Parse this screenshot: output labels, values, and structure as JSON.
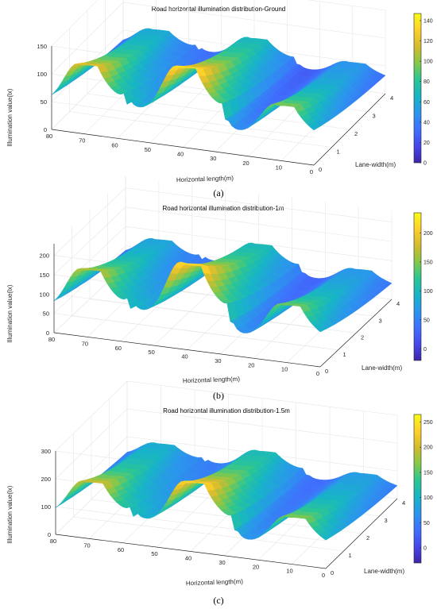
{
  "colormap": [
    "#3e26a8",
    "#4746eb",
    "#3f6ffd",
    "#2b95ed",
    "#17b4c7",
    "#2bc694",
    "#84c84a",
    "#d4bb2e",
    "#fdcf2c",
    "#f9fb15"
  ],
  "axis_color": "#262626",
  "grid_color": "#e6e6e6",
  "chart_data": [
    {
      "type": "surface",
      "panel_label": "(a)",
      "title": "Road horizontal illumination distribution-Ground",
      "xlabel": "Horizontal length(m)",
      "ylabel": "Lane-width(m)",
      "zlabel": "Illumination value(lx)",
      "x_ticks": [
        "80",
        "70",
        "60",
        "50",
        "40",
        "30",
        "20",
        "10",
        "0"
      ],
      "y_ticks": [
        "0",
        "1",
        "2",
        "3",
        "4"
      ],
      "z_ticks": [
        "0",
        "50",
        "100",
        "150"
      ],
      "colorbar_ticks": [
        "0",
        "20",
        "40",
        "60",
        "80",
        "100",
        "120",
        "140"
      ],
      "xlim": [
        0,
        80
      ],
      "ylim": [
        0,
        4
      ],
      "zlim": [
        0,
        150
      ],
      "cmin": 0,
      "cmax": 147,
      "lamp_positions": [
        72,
        42,
        12
      ],
      "peak_values": [
        125,
        145,
        100
      ],
      "base_value": 10,
      "grid": true
    },
    {
      "type": "surface",
      "panel_label": "(b)",
      "title": "Road horizontal illumination distribution-1m",
      "xlabel": "Horizontal length(m)",
      "ylabel": "Lane-width(m)",
      "zlabel": "Illumination value(lx)",
      "x_ticks": [
        "80",
        "70",
        "60",
        "50",
        "40",
        "30",
        "20",
        "10",
        "0"
      ],
      "y_ticks": [
        "0",
        "1",
        "2",
        "3",
        "4"
      ],
      "z_ticks": [
        "0",
        "50",
        "100",
        "150",
        "200"
      ],
      "colorbar_ticks": [
        "0",
        "50",
        "100",
        "150",
        "200"
      ],
      "xlim": [
        0,
        80
      ],
      "ylim": [
        0,
        4
      ],
      "zlim": [
        0,
        230
      ],
      "cmin": -20,
      "cmax": 235,
      "lamp_positions": [
        72,
        42,
        12
      ],
      "peak_values": [
        175,
        225,
        150
      ],
      "base_value": 5,
      "grid": true
    },
    {
      "type": "surface",
      "panel_label": "(c)",
      "title": "Road horizontal illumination distribution-1.5m",
      "xlabel": "Horizontal length(m)",
      "ylabel": "Lane-width(m)",
      "zlabel": "Illumination value(lx)",
      "x_ticks": [
        "80",
        "70",
        "60",
        "50",
        "40",
        "30",
        "20",
        "10",
        "0"
      ],
      "y_ticks": [
        "0",
        "1",
        "2",
        "3",
        "4"
      ],
      "z_ticks": [
        "0",
        "100",
        "200",
        "300"
      ],
      "colorbar_ticks": [
        "0",
        "50",
        "100",
        "150",
        "200",
        "250"
      ],
      "xlim": [
        0,
        80
      ],
      "ylim": [
        0,
        4
      ],
      "zlim": [
        0,
        300
      ],
      "cmin": -30,
      "cmax": 265,
      "lamp_positions": [
        72,
        42,
        12
      ],
      "peak_values": [
        205,
        250,
        170
      ],
      "base_value": 5,
      "grid": true
    }
  ]
}
